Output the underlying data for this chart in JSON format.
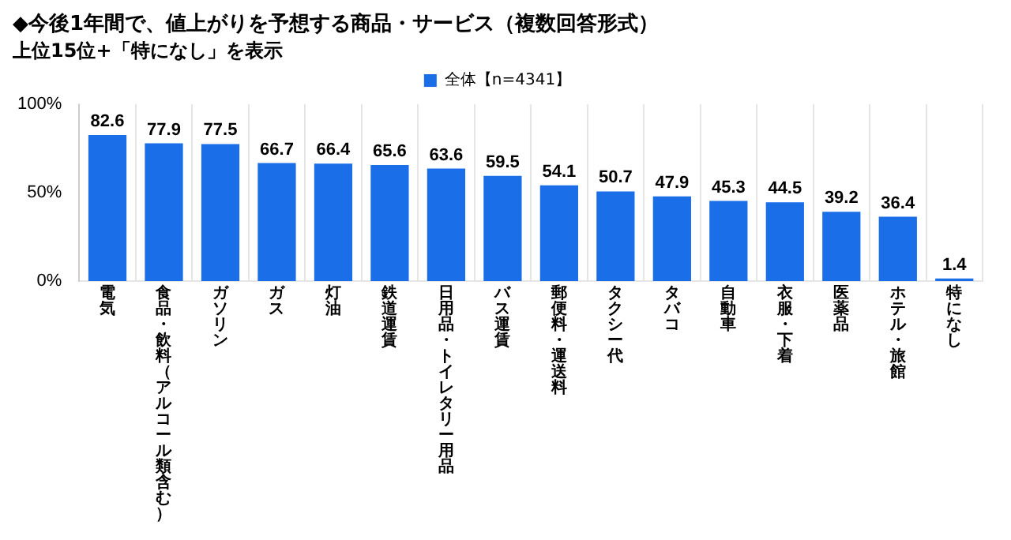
{
  "chart_data": {
    "type": "bar",
    "title": "◆今後1年間で、値上がりを予想する商品・サービス（複数回答形式）",
    "subtitle": "上位15位+「特になし」を表示",
    "categories": [
      "電気",
      "食品・飲料（アルコール類含む）",
      "ガソリン",
      "ガス",
      "灯油",
      "鉄道運賃",
      "日用品・トイレタリー用品",
      "バス運賃",
      "郵便料・運送料",
      "タクシー代",
      "タバコ",
      "自動車",
      "衣服・下着",
      "医薬品",
      "ホテル・旅館",
      "特になし"
    ],
    "series": [
      {
        "name": "全体【n=4341】",
        "color": "#1a6ee8",
        "values": [
          82.6,
          77.9,
          77.5,
          66.7,
          66.4,
          65.6,
          63.6,
          59.5,
          54.1,
          50.7,
          47.9,
          45.3,
          44.5,
          39.2,
          36.4,
          1.4
        ]
      }
    ],
    "ylim": [
      0,
      100
    ],
    "yticks": [
      {
        "value": 0,
        "label": "0%"
      },
      {
        "value": 50,
        "label": "50%"
      },
      {
        "value": 100,
        "label": "100%"
      }
    ],
    "grid": "x",
    "legend": "top",
    "data_labels": true
  }
}
